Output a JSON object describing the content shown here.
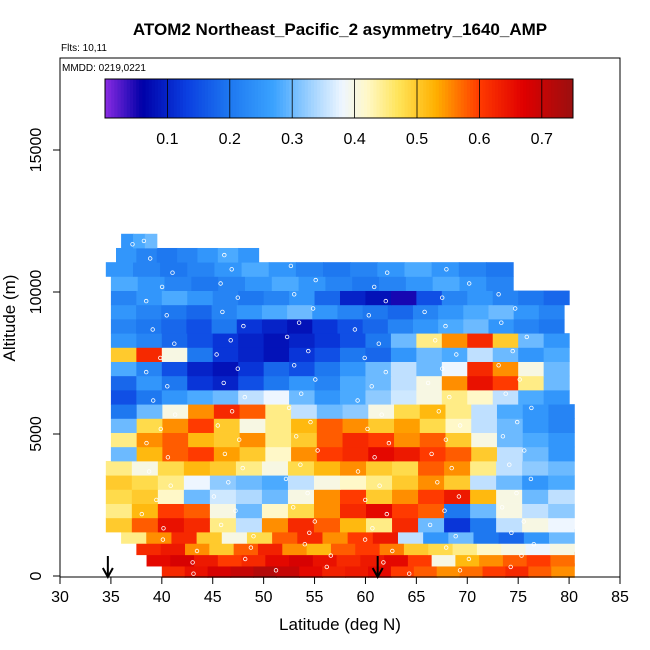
{
  "chart_data": {
    "type": "heatmap",
    "title": "ATOM2 Northeast_Pacific_2 asymmetry_1640_AMP",
    "subtitle_flights": "Flts: 10,11",
    "subtitle_dates": "MMDD: 0219,0221",
    "xlabel": "Latitude (deg N)",
    "ylabel": "Altitude (m)",
    "xlim": [
      30,
      85
    ],
    "ylim": [
      0,
      17500
    ],
    "x_ticks": [
      30,
      35,
      40,
      45,
      50,
      55,
      60,
      65,
      70,
      75,
      80,
      85
    ],
    "y_ticks": [
      0,
      5000,
      10000,
      15000
    ],
    "colorbar": {
      "range": [
        0.0,
        0.75
      ],
      "ticks": [
        0.1,
        0.2,
        0.3,
        0.4,
        0.5,
        0.6,
        0.7
      ],
      "stops": [
        {
          "v": 0.0,
          "c": "#8a2be2"
        },
        {
          "v": 0.06,
          "c": "#0000a8"
        },
        {
          "v": 0.13,
          "c": "#0a3ee0"
        },
        {
          "v": 0.2,
          "c": "#1e78f0"
        },
        {
          "v": 0.27,
          "c": "#3aa2ff"
        },
        {
          "v": 0.33,
          "c": "#9fd2ff"
        },
        {
          "v": 0.38,
          "c": "#eef6ff"
        },
        {
          "v": 0.42,
          "c": "#fff8c8"
        },
        {
          "v": 0.47,
          "c": "#ffe45a"
        },
        {
          "v": 0.53,
          "c": "#ffb000"
        },
        {
          "v": 0.6,
          "c": "#ff3a00"
        },
        {
          "v": 0.67,
          "c": "#e00000"
        },
        {
          "v": 0.75,
          "c": "#9a1010"
        }
      ]
    },
    "arrows_latitude": [
      34.7,
      61.2
    ],
    "rows": [
      {
        "alt": 200,
        "x0": 40.0,
        "x1": 80.5,
        "values": [
          0.62,
          0.65,
          0.68,
          0.7,
          0.72,
          0.7,
          0.66,
          0.63,
          0.64,
          0.66,
          0.6,
          0.58,
          0.55,
          0.57,
          0.6,
          0.62,
          0.58,
          0.55
        ]
      },
      {
        "alt": 600,
        "x0": 38.5,
        "x1": 80.5,
        "values": [
          0.66,
          0.68,
          0.64,
          0.6,
          0.62,
          0.66,
          0.68,
          0.65,
          0.62,
          0.64,
          0.66,
          0.6,
          0.4,
          0.52,
          0.55,
          0.58,
          0.6,
          0.57
        ]
      },
      {
        "alt": 1000,
        "x0": 37.5,
        "x1": 80.5,
        "values": [
          0.62,
          0.64,
          0.55,
          0.5,
          0.58,
          0.63,
          0.55,
          0.52,
          0.58,
          0.6,
          0.56,
          0.5,
          0.48,
          0.45,
          0.42,
          0.4,
          0.38,
          0.4
        ]
      },
      {
        "alt": 1400,
        "x0": 36.0,
        "x1": 80.5,
        "values": [
          0.45,
          0.55,
          0.62,
          0.5,
          0.4,
          0.48,
          0.58,
          0.62,
          0.55,
          0.6,
          0.64,
          0.35,
          0.25,
          0.3,
          0.2,
          0.18,
          0.25,
          0.3
        ]
      },
      {
        "alt": 1800,
        "x0": 34.5,
        "x1": 80.5,
        "values": [
          0.5,
          0.58,
          0.65,
          0.62,
          0.45,
          0.35,
          0.55,
          0.62,
          0.58,
          0.52,
          0.45,
          0.62,
          0.3,
          0.12,
          0.2,
          0.35,
          0.4,
          0.38
        ]
      },
      {
        "alt": 2300,
        "x0": 34.5,
        "x1": 80.5,
        "values": [
          0.45,
          0.52,
          0.6,
          0.58,
          0.4,
          0.3,
          0.42,
          0.48,
          0.55,
          0.62,
          0.66,
          0.6,
          0.58,
          0.2,
          0.3,
          0.4,
          0.35,
          0.32
        ]
      },
      {
        "alt": 2800,
        "x0": 34.5,
        "x1": 80.5,
        "values": [
          0.48,
          0.5,
          0.42,
          0.3,
          0.36,
          0.34,
          0.3,
          0.4,
          0.55,
          0.6,
          0.5,
          0.55,
          0.6,
          0.64,
          0.52,
          0.4,
          0.3,
          0.35
        ]
      },
      {
        "alt": 3300,
        "x0": 34.5,
        "x1": 80.5,
        "values": [
          0.5,
          0.48,
          0.45,
          0.38,
          0.32,
          0.3,
          0.28,
          0.35,
          0.4,
          0.42,
          0.45,
          0.5,
          0.55,
          0.5,
          0.35,
          0.3,
          0.25,
          0.28
        ]
      },
      {
        "alt": 3800,
        "x0": 34.5,
        "x1": 80.5,
        "values": [
          0.45,
          0.4,
          0.48,
          0.52,
          0.5,
          0.45,
          0.4,
          0.48,
          0.52,
          0.55,
          0.5,
          0.48,
          0.58,
          0.55,
          0.45,
          0.35,
          0.32,
          0.3
        ]
      },
      {
        "alt": 4300,
        "x0": 35.0,
        "x1": 80.5,
        "values": [
          0.3,
          0.52,
          0.58,
          0.6,
          0.54,
          0.5,
          0.42,
          0.55,
          0.6,
          0.62,
          0.66,
          0.64,
          0.6,
          0.58,
          0.5,
          0.35,
          0.3,
          0.25
        ]
      },
      {
        "alt": 4800,
        "x0": 35.0,
        "x1": 80.5,
        "values": [
          0.45,
          0.55,
          0.58,
          0.52,
          0.5,
          0.55,
          0.45,
          0.5,
          0.58,
          0.62,
          0.6,
          0.55,
          0.58,
          0.5,
          0.4,
          0.3,
          0.28,
          0.25
        ]
      },
      {
        "alt": 5300,
        "x0": 35.0,
        "x1": 80.5,
        "values": [
          0.3,
          0.48,
          0.55,
          0.6,
          0.5,
          0.4,
          0.45,
          0.52,
          0.58,
          0.55,
          0.5,
          0.54,
          0.48,
          0.42,
          0.35,
          0.3,
          0.25,
          0.22
        ]
      },
      {
        "alt": 5800,
        "x0": 35.0,
        "x1": 80.5,
        "values": [
          0.2,
          0.3,
          0.4,
          0.55,
          0.62,
          0.58,
          0.45,
          0.35,
          0.3,
          0.32,
          0.4,
          0.48,
          0.52,
          0.45,
          0.35,
          0.28,
          0.25,
          0.22
        ]
      },
      {
        "alt": 6300,
        "x0": 35.0,
        "x1": 80.0,
        "values": [
          0.15,
          0.2,
          0.25,
          0.28,
          0.3,
          0.35,
          0.38,
          0.3,
          0.25,
          0.28,
          0.32,
          0.36,
          0.4,
          0.45,
          0.42,
          0.35,
          0.28,
          0.25
        ]
      },
      {
        "alt": 6800,
        "x0": 35.0,
        "x1": 80.0,
        "values": [
          0.18,
          0.25,
          0.2,
          0.12,
          0.1,
          0.15,
          0.2,
          0.25,
          0.22,
          0.28,
          0.3,
          0.35,
          0.4,
          0.55,
          0.65,
          0.6,
          0.45,
          0.3
        ]
      },
      {
        "alt": 7300,
        "x0": 35.0,
        "x1": 80.0,
        "values": [
          0.28,
          0.22,
          0.15,
          0.1,
          0.08,
          0.12,
          0.18,
          0.15,
          0.2,
          0.25,
          0.3,
          0.35,
          0.3,
          0.38,
          0.62,
          0.55,
          0.4,
          0.3
        ]
      },
      {
        "alt": 7800,
        "x0": 35.0,
        "x1": 80.0,
        "values": [
          0.5,
          0.62,
          0.4,
          0.2,
          0.12,
          0.1,
          0.08,
          0.12,
          0.15,
          0.2,
          0.18,
          0.25,
          0.3,
          0.28,
          0.35,
          0.3,
          0.25,
          0.28
        ]
      },
      {
        "alt": 8300,
        "x0": 35.0,
        "x1": 80.0,
        "values": [
          0.25,
          0.22,
          0.18,
          0.15,
          0.12,
          0.1,
          0.08,
          0.1,
          0.12,
          0.15,
          0.2,
          0.3,
          0.45,
          0.55,
          0.62,
          0.5,
          0.3,
          0.25
        ]
      },
      {
        "alt": 8800,
        "x0": 35.0,
        "x1": 79.5,
        "values": [
          0.22,
          0.2,
          0.18,
          0.15,
          0.2,
          0.12,
          0.1,
          0.08,
          0.12,
          0.15,
          0.18,
          0.22,
          0.25,
          0.28,
          0.3,
          0.25,
          0.22,
          0.2
        ]
      },
      {
        "alt": 9300,
        "x0": 35.0,
        "x1": 79.5,
        "values": [
          0.25,
          0.22,
          0.2,
          0.18,
          0.22,
          0.25,
          0.28,
          0.3,
          0.25,
          0.22,
          0.2,
          0.18,
          0.22,
          0.25,
          0.28,
          0.3,
          0.25,
          0.22
        ]
      },
      {
        "alt": 9800,
        "x0": 35.0,
        "x1": 80.0,
        "values": [
          0.22,
          0.25,
          0.28,
          0.25,
          0.22,
          0.2,
          0.22,
          0.25,
          0.18,
          0.1,
          0.08,
          0.05,
          0.15,
          0.22,
          0.25,
          0.22,
          0.2,
          0.18
        ]
      },
      {
        "alt": 10300,
        "x0": 35.0,
        "x1": 74.5,
        "values": [
          0.28,
          0.25,
          0.22,
          0.2,
          0.22,
          0.25,
          0.28,
          0.25,
          0.22,
          0.2,
          0.22,
          0.25,
          0.28,
          0.25,
          0.22
        ]
      },
      {
        "alt": 10800,
        "x0": 34.5,
        "x1": 74.5,
        "values": [
          0.25,
          0.22,
          0.2,
          0.22,
          0.25,
          0.28,
          0.25,
          0.22,
          0.2,
          0.22,
          0.25,
          0.28,
          0.25,
          0.22,
          0.2
        ]
      },
      {
        "alt": 11300,
        "x0": 35.5,
        "x1": 49.5,
        "values": [
          0.25,
          0.22,
          0.2,
          0.22,
          0.25,
          0.28,
          0.25
        ]
      },
      {
        "alt": 11800,
        "x0": 36.0,
        "x1": 39.5,
        "values": [
          0.25,
          0.28,
          0.3
        ]
      }
    ]
  }
}
